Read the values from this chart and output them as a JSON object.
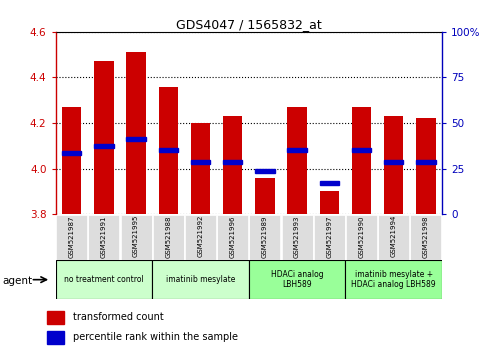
{
  "title": "GDS4047 / 1565832_at",
  "samples": [
    "GSM521987",
    "GSM521991",
    "GSM521995",
    "GSM521988",
    "GSM521992",
    "GSM521996",
    "GSM521989",
    "GSM521993",
    "GSM521997",
    "GSM521990",
    "GSM521994",
    "GSM521998"
  ],
  "bar_values": [
    4.27,
    4.47,
    4.51,
    4.36,
    4.2,
    4.23,
    3.96,
    4.27,
    3.9,
    4.27,
    4.23,
    4.22
  ],
  "percentile_values": [
    4.07,
    4.1,
    4.13,
    4.08,
    4.03,
    4.03,
    3.99,
    4.08,
    3.935,
    4.08,
    4.03,
    4.03
  ],
  "bar_bottom": 3.8,
  "ylim": [
    3.8,
    4.6
  ],
  "yticks": [
    3.8,
    4.0,
    4.2,
    4.4,
    4.6
  ],
  "right_yticks": [
    0,
    25,
    50,
    75,
    100
  ],
  "right_ylim": [
    0,
    100
  ],
  "bar_color": "#cc0000",
  "percentile_color": "#0000cc",
  "agent_groups": [
    {
      "label": "no treatment control",
      "start": 0,
      "end": 3,
      "color": "#ccffcc"
    },
    {
      "label": "imatinib mesylate",
      "start": 3,
      "end": 6,
      "color": "#ccffcc"
    },
    {
      "label": "HDACi analog\nLBH589",
      "start": 6,
      "end": 9,
      "color": "#99ff99"
    },
    {
      "label": "imatinib mesylate +\nHDACi analog LBH589",
      "start": 9,
      "end": 12,
      "color": "#99ff99"
    }
  ],
  "legend_items": [
    {
      "label": "transformed count",
      "color": "#cc0000"
    },
    {
      "label": "percentile rank within the sample",
      "color": "#0000cc"
    }
  ],
  "left_axis_color": "#cc0000",
  "right_axis_color": "#0000bb"
}
